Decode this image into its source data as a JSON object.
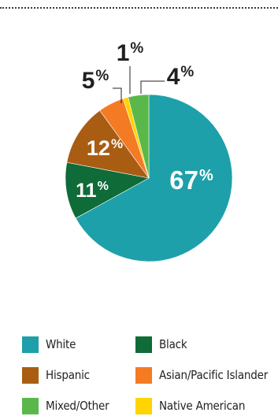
{
  "chart_data": {
    "type": "pie",
    "slices": [
      {
        "label": "White",
        "value": 67,
        "display": "67%",
        "color": "#1da0aa"
      },
      {
        "label": "Black",
        "value": 11,
        "display": "11%",
        "color": "#0f6b38"
      },
      {
        "label": "Hispanic",
        "value": 12,
        "display": "12%",
        "color": "#a85d13"
      },
      {
        "label": "Asian/Pacific Islander",
        "value": 5,
        "display": "5%",
        "color": "#f47b24"
      },
      {
        "label": "Native American",
        "value": 1,
        "display": "1%",
        "color": "#ffd400"
      },
      {
        "label": "Mixed/Other",
        "value": 4,
        "display": "4%",
        "color": "#5ab84a"
      }
    ],
    "legend_position": "bottom",
    "legend_order": [
      "White",
      "Black",
      "Hispanic",
      "Asian/Pacific Islander",
      "Mixed/Other",
      "Native American"
    ]
  }
}
